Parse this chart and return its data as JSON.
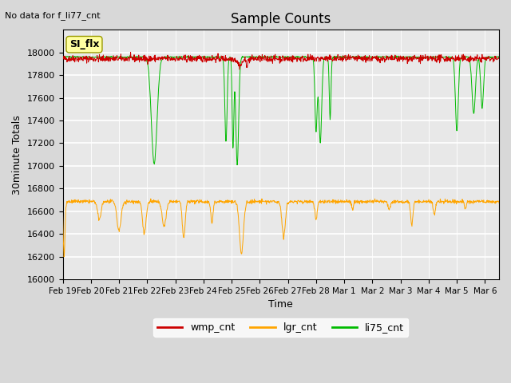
{
  "title": "Sample Counts",
  "subtitle": "No data for f_li77_cnt",
  "xlabel": "Time",
  "ylabel": "30minute Totals",
  "annotation_label": "SI_flx",
  "ylim": [
    16000,
    18200
  ],
  "yticks": [
    16000,
    16200,
    16400,
    16600,
    16800,
    17000,
    17200,
    17400,
    17600,
    17800,
    18000
  ],
  "x_tick_labels": [
    "Feb 19",
    "Feb 20",
    "Feb 21",
    "Feb 22",
    "Feb 23",
    "Feb 24",
    "Feb 25",
    "Feb 26",
    "Feb 27",
    "Feb 28",
    "Mar 1",
    "Mar 2",
    "Mar 3",
    "Mar 4",
    "Mar 5",
    "Mar 6"
  ],
  "wmp_base": 17945,
  "wmp_noise": 15,
  "lgr_base": 16685,
  "lgr_noise": 8,
  "li75_base": 17960,
  "wmp_color": "#cc0000",
  "lgr_color": "#ffa500",
  "li75_color": "#00bb00",
  "bg_color": "#e8e8e8",
  "legend_labels": [
    "wmp_cnt",
    "lgr_cnt",
    "li75_cnt"
  ],
  "figsize": [
    6.4,
    4.8
  ],
  "dpi": 100,
  "lgr_dip_centers": [
    0.05,
    1.3,
    2.0,
    2.9,
    3.6,
    4.3,
    5.3,
    6.35,
    7.85,
    9.0,
    10.3,
    11.6,
    12.4,
    13.2,
    14.3
  ],
  "lgr_dip_depths": [
    480,
    160,
    260,
    280,
    220,
    320,
    180,
    460,
    310,
    160,
    70,
    70,
    210,
    110,
    70
  ],
  "lgr_dip_widths": [
    0.03,
    0.06,
    0.07,
    0.06,
    0.07,
    0.05,
    0.04,
    0.07,
    0.06,
    0.04,
    0.03,
    0.04,
    0.04,
    0.04,
    0.03
  ],
  "li75_dip_centers": [
    3.25,
    5.8,
    6.05,
    6.2,
    9.0,
    9.15,
    9.5,
    14.0,
    14.6,
    14.9
  ],
  "li75_dip_depths": [
    940,
    750,
    800,
    950,
    650,
    750,
    550,
    650,
    500,
    450
  ],
  "li75_dip_widths": [
    0.1,
    0.04,
    0.03,
    0.05,
    0.04,
    0.05,
    0.03,
    0.05,
    0.06,
    0.05
  ]
}
